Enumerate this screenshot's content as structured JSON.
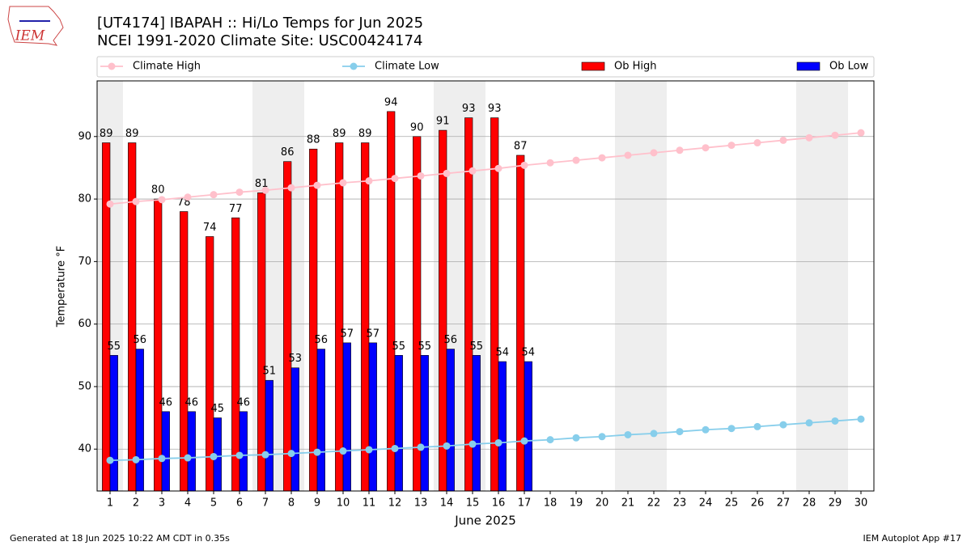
{
  "logo_text": "IEM",
  "footer": {
    "left": "Generated at 18 Jun 2025 10:22 AM CDT in 0.35s",
    "right": "IEM Autoplot App #17"
  },
  "chart_data": {
    "type": "bar",
    "title": "[UT4174] IBAPAH :: Hi/Lo Temps for Jun 2025",
    "subtitle": "NCEI 1991-2020 Climate Site: USC00424174",
    "x_label": "June 2025",
    "y_label": "Temperature °F",
    "x": [
      1,
      2,
      3,
      4,
      5,
      6,
      7,
      8,
      9,
      10,
      11,
      12,
      13,
      14,
      15,
      16,
      17,
      18,
      19,
      20,
      21,
      22,
      23,
      24,
      25,
      26,
      27,
      28,
      29,
      30
    ],
    "xlim": [
      0.5,
      30.5
    ],
    "ylim": [
      33.3,
      98.9
    ],
    "yticks": [
      40,
      50,
      60,
      70,
      80,
      90
    ],
    "grid": true,
    "legend": "top",
    "shaded_days": [
      1,
      7,
      8,
      14,
      15,
      21,
      22,
      28,
      29
    ],
    "series": [
      {
        "name": "Climate High",
        "type": "line",
        "color": "#ffc0cb",
        "values": [
          79.2,
          79.6,
          79.9,
          80.3,
          80.7,
          81.1,
          81.4,
          81.8,
          82.2,
          82.6,
          82.9,
          83.3,
          83.7,
          84.1,
          84.5,
          84.9,
          85.4,
          85.8,
          86.2,
          86.6,
          87.0,
          87.4,
          87.8,
          88.2,
          88.6,
          89.0,
          89.4,
          89.8,
          90.2,
          90.6
        ]
      },
      {
        "name": "Climate Low",
        "type": "line",
        "color": "#87ceeb",
        "values": [
          38.2,
          38.3,
          38.5,
          38.6,
          38.8,
          39.0,
          39.1,
          39.3,
          39.5,
          39.7,
          39.9,
          40.1,
          40.3,
          40.5,
          40.8,
          41.0,
          41.3,
          41.5,
          41.8,
          42.0,
          42.3,
          42.5,
          42.8,
          43.1,
          43.3,
          43.6,
          43.9,
          44.2,
          44.5,
          44.8
        ]
      },
      {
        "name": "Ob High",
        "type": "bar",
        "color": "#ff0000",
        "values": [
          89,
          89,
          80,
          78,
          74,
          77,
          81,
          86,
          88,
          89,
          89,
          94,
          90,
          91,
          93,
          93,
          87,
          null,
          null,
          null,
          null,
          null,
          null,
          null,
          null,
          null,
          null,
          null,
          null,
          null
        ]
      },
      {
        "name": "Ob Low",
        "type": "bar",
        "color": "#0000ff",
        "values": [
          55,
          56,
          46,
          46,
          45,
          46,
          51,
          53,
          56,
          57,
          57,
          55,
          55,
          56,
          55,
          54,
          54,
          null,
          null,
          null,
          null,
          null,
          null,
          null,
          null,
          null,
          null,
          null,
          null,
          null
        ]
      }
    ]
  }
}
